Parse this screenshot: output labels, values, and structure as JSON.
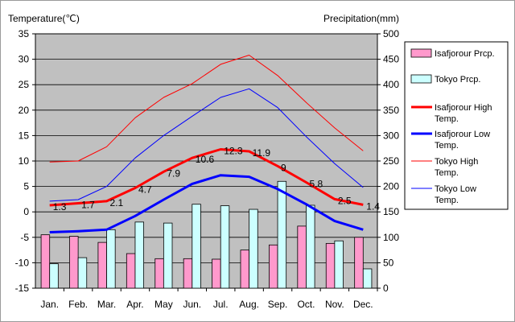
{
  "chart_data": {
    "type": "bar+line",
    "left_axis_title": "Temperature(℃)",
    "right_axis_title": "Precipitation(mm)",
    "left_ylim": [
      -15,
      35
    ],
    "left_ticks": [
      "35",
      "30",
      "25",
      "20",
      "15",
      "10",
      "5",
      "0",
      "-5",
      "-10",
      "-15"
    ],
    "right_ylim": [
      0,
      500
    ],
    "right_ticks": [
      "500",
      "450",
      "400",
      "350",
      "300",
      "250",
      "200",
      "150",
      "100",
      "50",
      "0"
    ],
    "categories": [
      "Jan.",
      "Feb.",
      "Mar.",
      "Apr.",
      "May",
      "Jun.",
      "Jul.",
      "Aug.",
      "Sep.",
      "Oct.",
      "Nov.",
      "Dec."
    ],
    "grid": true,
    "legend_position": "right",
    "bar_series": [
      {
        "name": "Isafjorour Prcp.",
        "color": "#ff99cc",
        "values": [
          105,
          102,
          90,
          68,
          58,
          58,
          57,
          75,
          85,
          122,
          88,
          100
        ]
      },
      {
        "name": "Tokyo Prcp.",
        "color": "#ccffff",
        "values": [
          48,
          60,
          115,
          130,
          128,
          165,
          162,
          155,
          210,
          163,
          93,
          38
        ]
      }
    ],
    "line_series": [
      {
        "name": "Isafjorour High Temp.",
        "color": "#ff0000",
        "width": "thick",
        "values": [
          1.3,
          1.7,
          2.1,
          4.7,
          7.9,
          10.6,
          12.3,
          11.9,
          9.0,
          5.8,
          2.5,
          1.4
        ],
        "labels": [
          "1.3",
          "1.7",
          "2.1",
          "4.7",
          "7.9",
          "10.6",
          "12.3",
          "11.9",
          "9",
          "5.8",
          "2.5",
          "1.4"
        ]
      },
      {
        "name": "Isafjorour Low Temp.",
        "color": "#0000ff",
        "width": "thick",
        "values": [
          -4.0,
          -3.8,
          -3.5,
          -0.8,
          2.4,
          5.5,
          7.2,
          6.9,
          4.5,
          1.5,
          -1.8,
          -3.5
        ]
      },
      {
        "name": "Tokyo High Temp.",
        "color": "#ff0000",
        "width": "thin",
        "values": [
          9.8,
          10.0,
          12.8,
          18.5,
          22.5,
          25.2,
          29.0,
          30.8,
          26.8,
          21.5,
          16.5,
          12.0
        ]
      },
      {
        "name": "Tokyo Low Temp.",
        "color": "#0000ff",
        "width": "thin",
        "values": [
          2.1,
          2.4,
          5.0,
          10.6,
          15.0,
          18.8,
          22.5,
          24.2,
          20.5,
          14.8,
          9.5,
          4.8
        ]
      }
    ]
  }
}
